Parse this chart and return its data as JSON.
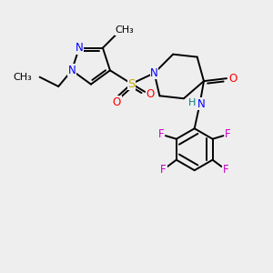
{
  "bg_color": "#eeeeee",
  "atom_colors": {
    "N": "#0000ff",
    "O": "#ff0000",
    "S": "#ccaa00",
    "F": "#cc00cc",
    "C": "#000000",
    "H": "#008080"
  },
  "lw": 1.4,
  "fs": 8.5
}
